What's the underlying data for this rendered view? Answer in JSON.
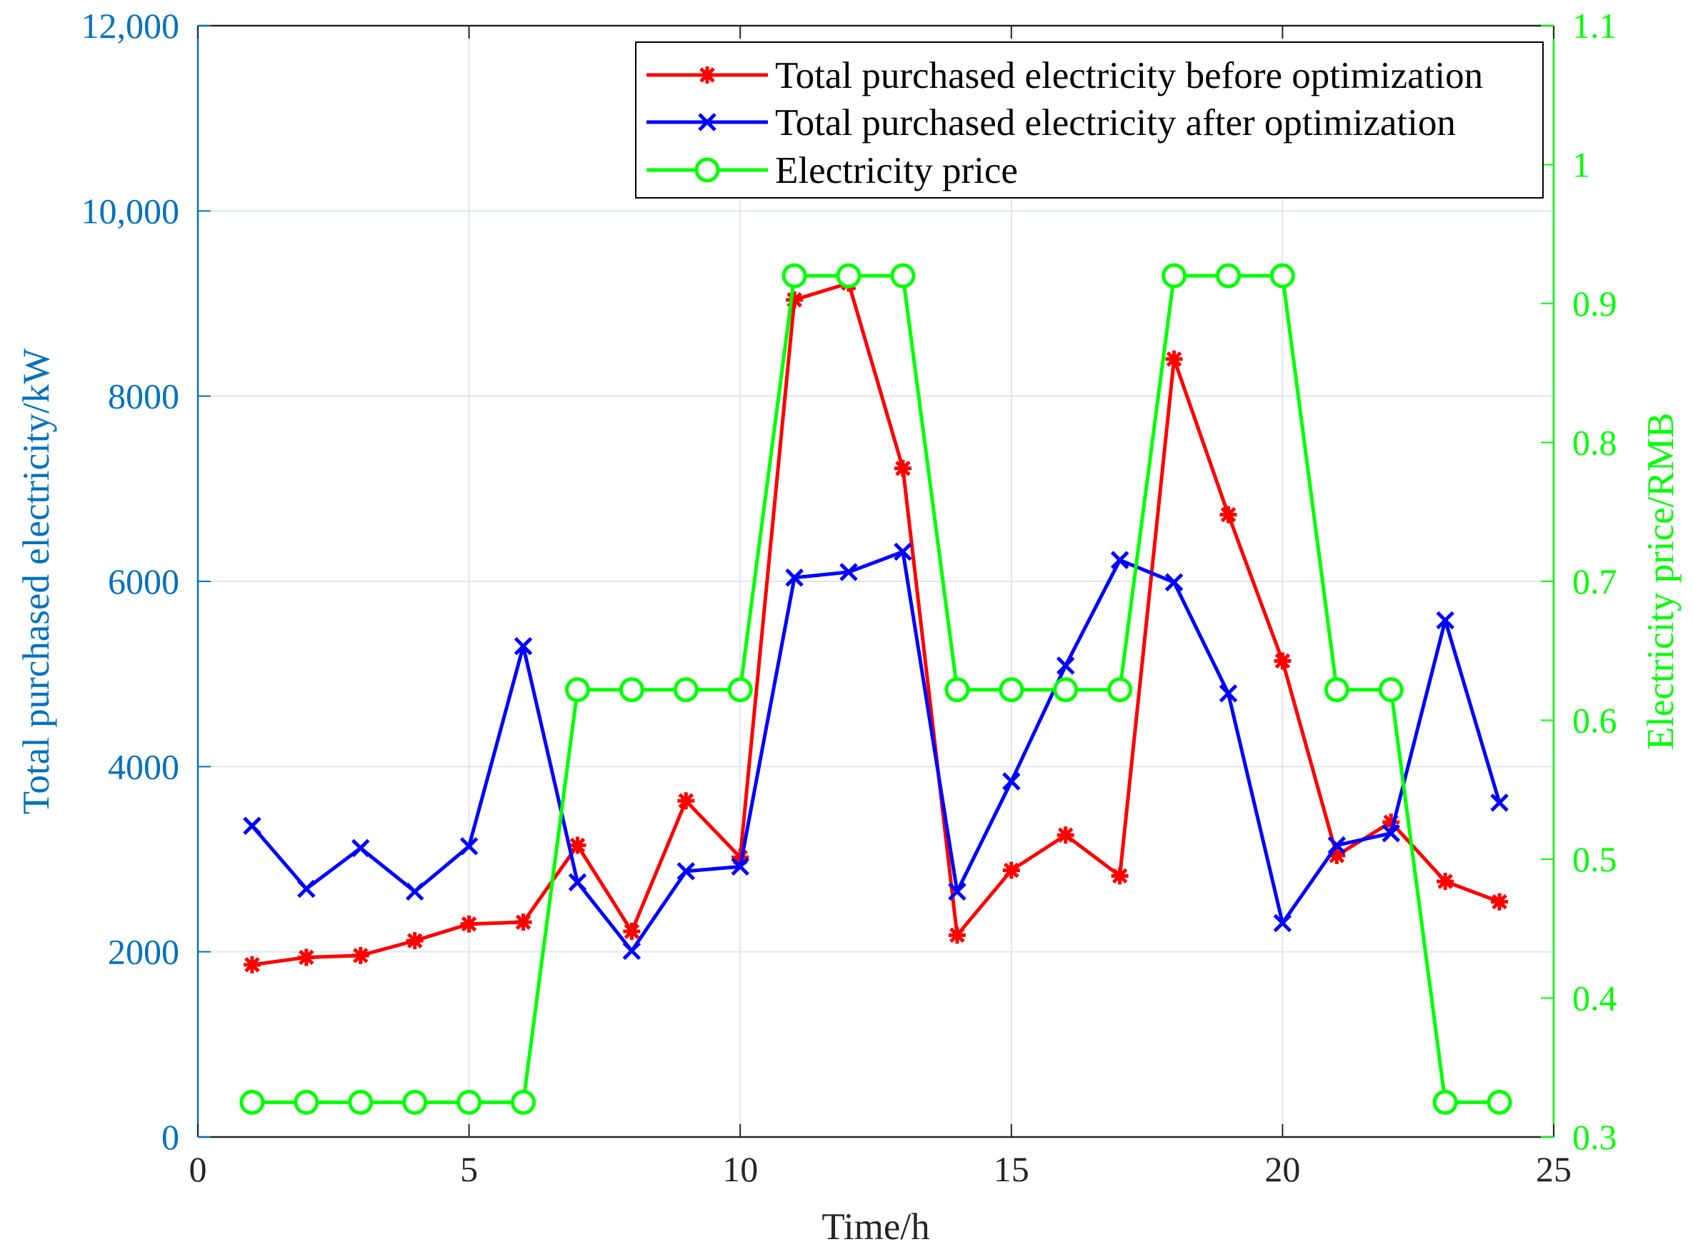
{
  "chart_data": {
    "type": "line",
    "title": "",
    "xlabel": "Time/h",
    "ylabel_left": "Total purchased electricity/kW",
    "ylabel_right": "Electricity price/RMB",
    "xlim": [
      0,
      25
    ],
    "ylim_left": [
      0,
      12000
    ],
    "ylim_right": [
      0.3,
      1.1
    ],
    "x_ticks": [
      "0",
      "5",
      "10",
      "15",
      "20",
      "25"
    ],
    "y_ticks_left": [
      "0",
      "2000",
      "4000",
      "6000",
      "8000",
      "10,000",
      "12,000"
    ],
    "y_ticks_right": [
      "0.3",
      "0.4",
      "0.5",
      "0.6",
      "0.7",
      "0.8",
      "0.9",
      "1",
      "1.1"
    ],
    "grid": true,
    "legend_position": "top-right",
    "x": [
      1,
      2,
      3,
      4,
      5,
      6,
      7,
      8,
      9,
      10,
      11,
      12,
      13,
      14,
      15,
      16,
      17,
      18,
      19,
      20,
      21,
      22,
      23,
      24
    ],
    "series": [
      {
        "name": "Total purchased electricity before optimization",
        "axis": "left",
        "color": "#FF0000",
        "marker": "asterisk",
        "values": [
          1860,
          1940,
          1960,
          2120,
          2300,
          2320,
          3150,
          2220,
          3630,
          3020,
          9040,
          9220,
          7220,
          2180,
          2880,
          3260,
          2820,
          8400,
          6720,
          5140,
          3040,
          3400,
          2760,
          2540
        ]
      },
      {
        "name": "Total purchased electricity after optimization",
        "axis": "left",
        "color": "#0000FF",
        "marker": "x",
        "values": [
          3360,
          2680,
          3120,
          2650,
          3140,
          5300,
          2750,
          2010,
          2870,
          2920,
          6040,
          6100,
          6320,
          2650,
          3840,
          5090,
          6230,
          5990,
          4790,
          2310,
          3150,
          3280,
          5580,
          3610
        ]
      },
      {
        "name": "Electricity price",
        "axis": "right",
        "color": "#00FF00",
        "marker": "circle",
        "values": [
          0.325,
          0.325,
          0.325,
          0.325,
          0.325,
          0.325,
          0.622,
          0.622,
          0.622,
          0.622,
          0.92,
          0.92,
          0.92,
          0.622,
          0.622,
          0.622,
          0.622,
          0.92,
          0.92,
          0.92,
          0.622,
          0.622,
          0.325,
          0.325
        ]
      }
    ]
  }
}
